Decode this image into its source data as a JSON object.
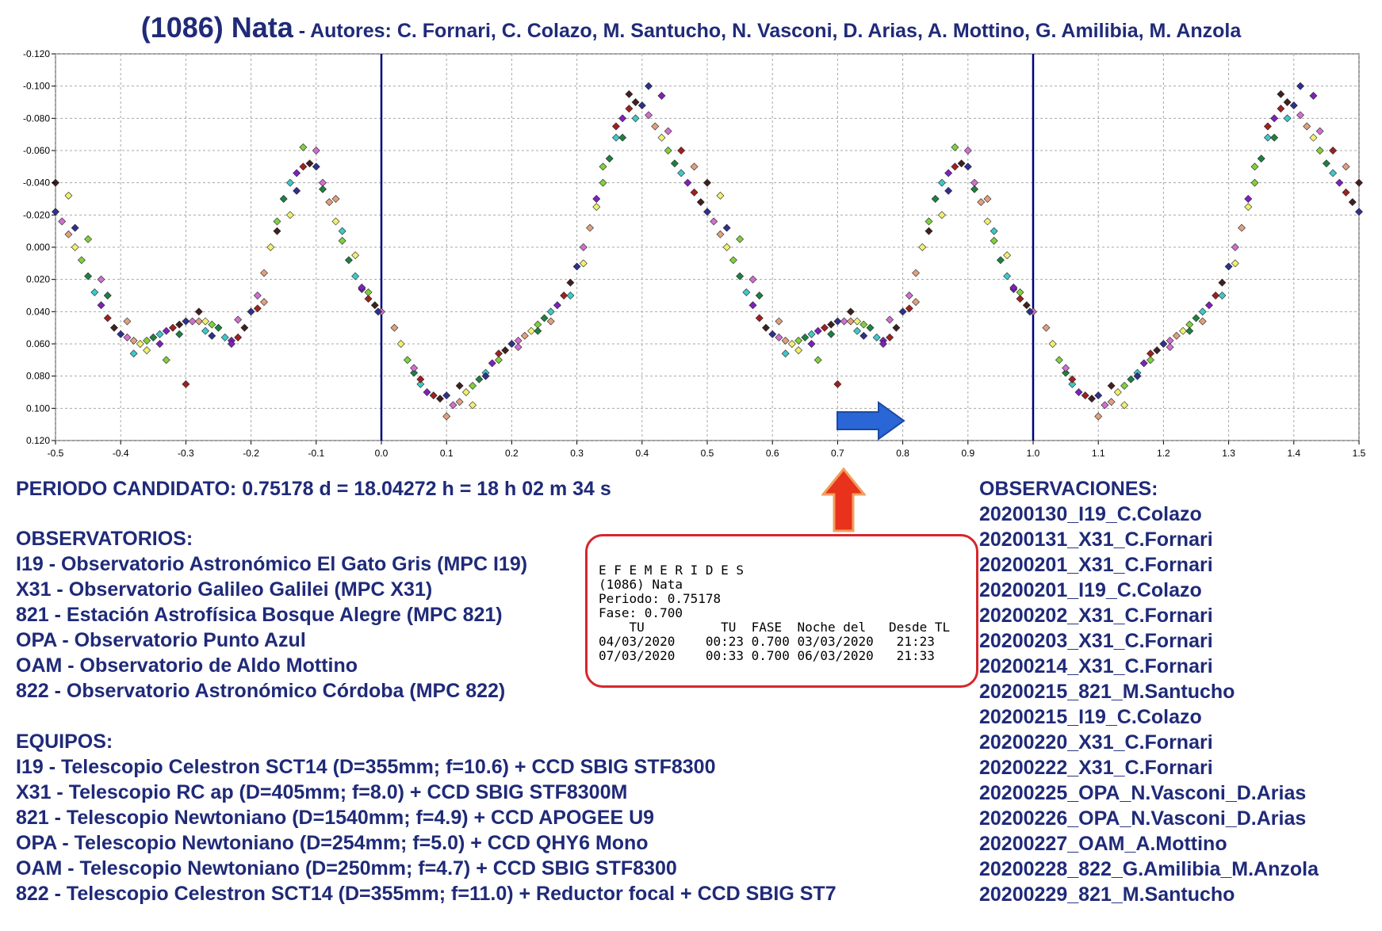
{
  "header": {
    "object": "(1086) Nata",
    "authors": " - Autores: C. Fornari, C. Colazo, M. Santucho, N. Vasconi, D. Arias, A. Mottino, G. Amilibia, M. Anzola"
  },
  "chart_data": {
    "type": "scatter",
    "title": "",
    "xlabel": "",
    "ylabel": "",
    "xlim": [
      -0.5,
      1.5
    ],
    "ylim": [
      -0.12,
      0.12
    ],
    "y_inverted": true,
    "grid": true,
    "x_ticks": [
      "-0.5",
      "-0.4",
      "-0.3",
      "-0.2",
      "-0.1",
      "0.0",
      "0.1",
      "0.2",
      "0.3",
      "0.4",
      "0.5",
      "0.6",
      "0.7",
      "0.8",
      "0.9",
      "1.0",
      "1.1",
      "1.2",
      "1.3",
      "1.4",
      "1.5"
    ],
    "y_ticks": [
      "-0.120",
      "-0.100",
      "-0.080",
      "-0.060",
      "-0.040",
      "-0.020",
      "0.000",
      "0.020",
      "0.040",
      "0.060",
      "0.080",
      "0.100",
      "0.120"
    ],
    "vertical_lines": [
      0.0,
      1.0
    ],
    "series_colors": [
      "#d070d0",
      "#e0a080",
      "#f0f070",
      "#80d040",
      "#208040",
      "#40c8c8",
      "#8020c0",
      "#a02020",
      "#402020",
      "#303090"
    ],
    "points": [
      [
        0.0,
        0.04
      ],
      [
        0.02,
        0.05
      ],
      [
        0.03,
        0.06
      ],
      [
        0.04,
        0.07
      ],
      [
        0.05,
        0.078
      ],
      [
        0.06,
        0.085
      ],
      [
        0.07,
        0.09
      ],
      [
        0.08,
        0.092
      ],
      [
        0.09,
        0.094
      ],
      [
        0.1,
        0.092
      ],
      [
        0.11,
        0.098
      ],
      [
        0.12,
        0.096
      ],
      [
        0.13,
        0.09
      ],
      [
        0.14,
        0.086
      ],
      [
        0.15,
        0.082
      ],
      [
        0.16,
        0.078
      ],
      [
        0.17,
        0.072
      ],
      [
        0.18,
        0.066
      ],
      [
        0.19,
        0.064
      ],
      [
        0.2,
        0.06
      ],
      [
        0.21,
        0.058
      ],
      [
        0.22,
        0.055
      ],
      [
        0.23,
        0.052
      ],
      [
        0.24,
        0.048
      ],
      [
        0.25,
        0.044
      ],
      [
        0.26,
        0.04
      ],
      [
        0.27,
        0.036
      ],
      [
        0.28,
        0.03
      ],
      [
        0.29,
        0.022
      ],
      [
        0.3,
        0.012
      ],
      [
        0.31,
        0.0
      ],
      [
        0.32,
        -0.012
      ],
      [
        0.33,
        -0.025
      ],
      [
        0.34,
        -0.04
      ],
      [
        0.35,
        -0.055
      ],
      [
        0.36,
        -0.068
      ],
      [
        0.37,
        -0.08
      ],
      [
        0.38,
        -0.086
      ],
      [
        0.39,
        -0.09
      ],
      [
        0.4,
        -0.088
      ],
      [
        0.41,
        -0.082
      ],
      [
        0.42,
        -0.075
      ],
      [
        0.43,
        -0.068
      ],
      [
        0.44,
        -0.06
      ],
      [
        0.45,
        -0.052
      ],
      [
        0.46,
        -0.046
      ],
      [
        0.47,
        -0.04
      ],
      [
        0.48,
        -0.034
      ],
      [
        0.49,
        -0.028
      ],
      [
        0.5,
        -0.022
      ],
      [
        0.51,
        -0.016
      ],
      [
        0.52,
        -0.008
      ],
      [
        0.53,
        0.0
      ],
      [
        0.54,
        0.008
      ],
      [
        0.55,
        0.018
      ],
      [
        0.56,
        0.028
      ],
      [
        0.57,
        0.036
      ],
      [
        0.58,
        0.044
      ],
      [
        0.59,
        0.05
      ],
      [
        0.6,
        0.054
      ],
      [
        0.61,
        0.056
      ],
      [
        0.62,
        0.058
      ],
      [
        0.63,
        0.06
      ],
      [
        0.64,
        0.058
      ],
      [
        0.65,
        0.056
      ],
      [
        0.66,
        0.054
      ],
      [
        0.67,
        0.052
      ],
      [
        0.68,
        0.05
      ],
      [
        0.69,
        0.048
      ],
      [
        0.7,
        0.046
      ],
      [
        0.71,
        0.046
      ],
      [
        0.72,
        0.046
      ],
      [
        0.73,
        0.046
      ],
      [
        0.74,
        0.048
      ],
      [
        0.75,
        0.05
      ],
      [
        0.76,
        0.056
      ],
      [
        0.77,
        0.058
      ],
      [
        0.78,
        0.056
      ],
      [
        0.79,
        0.05
      ],
      [
        0.8,
        0.04
      ],
      [
        0.81,
        0.03
      ],
      [
        0.82,
        0.016
      ],
      [
        0.83,
        0.0
      ],
      [
        0.84,
        -0.016
      ],
      [
        0.85,
        -0.03
      ],
      [
        0.86,
        -0.04
      ],
      [
        0.87,
        -0.046
      ],
      [
        0.88,
        -0.05
      ],
      [
        0.89,
        -0.052
      ],
      [
        0.9,
        -0.05
      ],
      [
        0.91,
        -0.04
      ],
      [
        0.92,
        -0.028
      ],
      [
        0.93,
        -0.016
      ],
      [
        0.94,
        -0.004
      ],
      [
        0.95,
        0.008
      ],
      [
        0.96,
        0.018
      ],
      [
        0.97,
        0.026
      ],
      [
        0.98,
        0.032
      ],
      [
        0.99,
        0.036
      ],
      [
        0.995,
        0.04
      ],
      [
        0.05,
        0.075
      ],
      [
        0.1,
        0.105
      ],
      [
        0.14,
        0.098
      ],
      [
        0.18,
        0.07
      ],
      [
        0.24,
        0.052
      ],
      [
        0.29,
        0.03
      ],
      [
        0.33,
        -0.03
      ],
      [
        0.36,
        -0.075
      ],
      [
        0.38,
        -0.095
      ],
      [
        0.41,
        -0.1
      ],
      [
        0.44,
        -0.072
      ],
      [
        0.48,
        -0.05
      ],
      [
        0.52,
        -0.032
      ],
      [
        0.55,
        -0.005
      ],
      [
        0.58,
        0.03
      ],
      [
        0.62,
        0.066
      ],
      [
        0.66,
        0.06
      ],
      [
        0.7,
        0.085
      ],
      [
        0.72,
        0.04
      ],
      [
        0.74,
        0.055
      ],
      [
        0.78,
        0.045
      ],
      [
        0.82,
        0.034
      ],
      [
        0.86,
        -0.02
      ],
      [
        0.88,
        -0.062
      ],
      [
        0.91,
        -0.036
      ],
      [
        0.94,
        -0.01
      ],
      [
        0.97,
        0.025
      ],
      [
        0.06,
        0.082
      ],
      [
        0.12,
        0.086
      ],
      [
        0.16,
        0.08
      ],
      [
        0.21,
        0.062
      ],
      [
        0.26,
        0.046
      ],
      [
        0.31,
        0.01
      ],
      [
        0.34,
        -0.05
      ],
      [
        0.37,
        -0.068
      ],
      [
        0.39,
        -0.08
      ],
      [
        0.43,
        -0.094
      ],
      [
        0.46,
        -0.06
      ],
      [
        0.5,
        -0.04
      ],
      [
        0.53,
        -0.012
      ],
      [
        0.57,
        0.02
      ],
      [
        0.61,
        0.046
      ],
      [
        0.64,
        0.064
      ],
      [
        0.67,
        0.07
      ],
      [
        0.69,
        0.054
      ],
      [
        0.73,
        0.052
      ],
      [
        0.77,
        0.06
      ],
      [
        0.81,
        0.038
      ],
      [
        0.84,
        -0.01
      ],
      [
        0.87,
        -0.035
      ],
      [
        0.9,
        -0.06
      ],
      [
        0.93,
        -0.03
      ],
      [
        0.96,
        0.005
      ],
      [
        0.98,
        0.028
      ]
    ]
  },
  "annotation": {
    "periodo": "PERIODO CANDIDATO: 0.75178 d = 18.04272 h = 18 h 02 m 34 s"
  },
  "observatorios": {
    "heading": "OBSERVATORIOS:",
    "items": [
      "I19 - Observatorio Astronómico El Gato Gris (MPC I19)",
      "X31 - Observatorio Galileo Galilei (MPC X31)",
      "821 - Estación Astrofísica Bosque Alegre (MPC 821)",
      "OPA - Observatorio Punto Azul",
      "OAM - Observatorio de Aldo Mottino",
      "822 - Observatorio Astronómico Córdoba (MPC 822)"
    ]
  },
  "equipos": {
    "heading": "EQUIPOS:",
    "items": [
      "I19 - Telescopio Celestron SCT14 (D=355mm; f=10.6) + CCD SBIG STF8300",
      "X31 - Telescopio RC ap (D=405mm; f=8.0) + CCD SBIG STF8300M",
      "821 - Telescopio Newtoniano (D=1540mm; f=4.9) + CCD APOGEE U9",
      "OPA - Telescopio Newtoniano (D=254mm; f=5.0) + CCD QHY6 Mono",
      "OAM - Telescopio Newtoniano (D=250mm; f=4.7) + CCD SBIG STF8300",
      "822 - Telescopio Celestron SCT14 (D=355mm; f=11.0) + Reductor focal + CCD SBIG ST7"
    ]
  },
  "observaciones": {
    "heading": "OBSERVACIONES:",
    "items": [
      "20200130_I19_C.Colazo",
      "20200131_X31_C.Fornari",
      "20200201_X31_C.Fornari",
      "20200201_I19_C.Colazo",
      "20200202_X31_C.Fornari",
      "20200203_X31_C.Fornari",
      "20200214_X31_C.Fornari",
      "20200215_821_M.Santucho",
      "20200215_I19_C.Colazo",
      "20200220_X31_C.Fornari",
      "20200222_X31_C.Fornari",
      "20200225_OPA_N.Vasconi_D.Arias",
      "20200226_OPA_N.Vasconi_D.Arias",
      "20200227_OAM_A.Mottino",
      "20200228_822_G.Amilibia_M.Anzola",
      "20200229_821_M.Santucho"
    ]
  },
  "efemerides": {
    "heading": "E F E M E R I D E S",
    "object": "(1086) Nata",
    "periodo": "Periodo: 0.75178",
    "fase": "Fase: 0.700",
    "columns": "    TU          TU  FASE  Noche del   Desde TL",
    "rows": [
      "04/03/2020    00:23 0.700 03/03/2020   21:23",
      "07/03/2020    00:33 0.700 06/03/2020   21:33"
    ]
  },
  "arrows": {
    "up_color": "#e8321c",
    "right_color": "#2a66d6"
  }
}
